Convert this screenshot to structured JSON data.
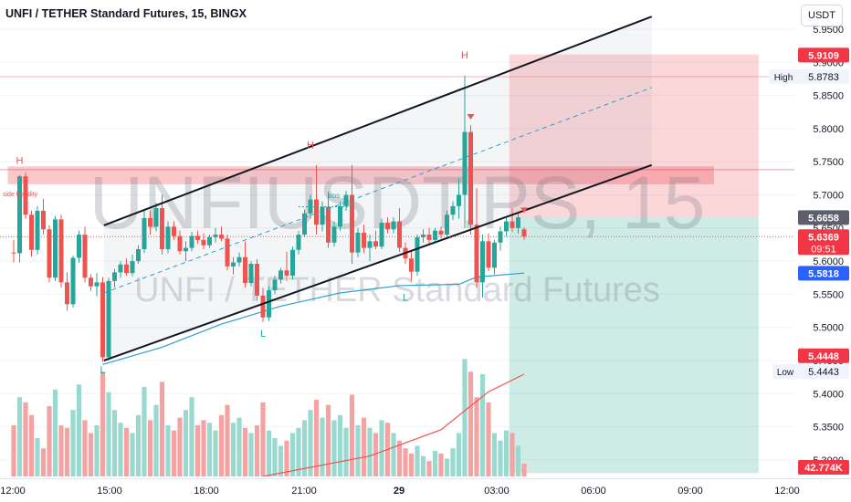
{
  "header": {
    "title": "UNFI / TETHER Standard Futures, 15, BINGX",
    "unit_button": "USDT"
  },
  "watermark": {
    "symbol": "UNFIUSDT.PS, 15",
    "description": "UNFI / TETHER Standard Futures"
  },
  "colors": {
    "up": "#26a69a",
    "down": "#ef5350",
    "up_volume": "#9ad9cf",
    "down_volume": "#f5a3a2",
    "channel": "#131722",
    "ma_line": "#2b9fd0",
    "volume_ma": "#ef5350",
    "stop_zone": "#f8c5c5",
    "target_zone": "#c6e9e4"
  },
  "chart_data": {
    "type": "candlestick",
    "y_axis": {
      "ylim": [
        5.28,
        5.965
      ],
      "ticks": [
        "5.9500",
        "5.9000",
        "5.8500",
        "5.8000",
        "5.7500",
        "5.7000",
        "5.6500",
        "5.6000",
        "5.5500",
        "5.5000",
        "5.4500",
        "5.4000",
        "5.3500",
        "5.3000"
      ]
    },
    "x_axis": {
      "ticks": [
        "12:00",
        "15:00",
        "18:00",
        "21:00",
        "29",
        "03:00",
        "06:00",
        "09:00",
        "12:00"
      ]
    },
    "candles": [
      {
        "o": 5.613,
        "h": 5.632,
        "l": 5.598,
        "c": 5.612
      },
      {
        "o": 5.612,
        "h": 5.73,
        "l": 5.598,
        "c": 5.728
      },
      {
        "o": 5.728,
        "h": 5.734,
        "l": 5.664,
        "c": 5.67
      },
      {
        "o": 5.67,
        "h": 5.676,
        "l": 5.607,
        "c": 5.617
      },
      {
        "o": 5.617,
        "h": 5.683,
        "l": 5.61,
        "c": 5.676
      },
      {
        "o": 5.676,
        "h": 5.694,
        "l": 5.64,
        "c": 5.648
      },
      {
        "o": 5.648,
        "h": 5.654,
        "l": 5.568,
        "c": 5.575
      },
      {
        "o": 5.575,
        "h": 5.668,
        "l": 5.57,
        "c": 5.663
      },
      {
        "o": 5.663,
        "h": 5.67,
        "l": 5.56,
        "c": 5.568
      },
      {
        "o": 5.568,
        "h": 5.583,
        "l": 5.525,
        "c": 5.535
      },
      {
        "o": 5.535,
        "h": 5.608,
        "l": 5.53,
        "c": 5.605
      },
      {
        "o": 5.605,
        "h": 5.646,
        "l": 5.597,
        "c": 5.64
      },
      {
        "o": 5.64,
        "h": 5.652,
        "l": 5.568,
        "c": 5.575
      },
      {
        "o": 5.575,
        "h": 5.58,
        "l": 5.555,
        "c": 5.562
      },
      {
        "o": 5.562,
        "h": 5.582,
        "l": 5.547,
        "c": 5.568
      },
      {
        "o": 5.568,
        "h": 5.576,
        "l": 5.448,
        "c": 5.455
      },
      {
        "o": 5.455,
        "h": 5.575,
        "l": 5.45,
        "c": 5.57
      },
      {
        "o": 5.57,
        "h": 5.588,
        "l": 5.56,
        "c": 5.583
      },
      {
        "o": 5.583,
        "h": 5.6,
        "l": 5.575,
        "c": 5.595
      },
      {
        "o": 5.595,
        "h": 5.604,
        "l": 5.578,
        "c": 5.582
      },
      {
        "o": 5.582,
        "h": 5.61,
        "l": 5.577,
        "c": 5.6
      },
      {
        "o": 5.6,
        "h": 5.624,
        "l": 5.596,
        "c": 5.618
      },
      {
        "o": 5.618,
        "h": 5.678,
        "l": 5.612,
        "c": 5.665
      },
      {
        "o": 5.665,
        "h": 5.676,
        "l": 5.64,
        "c": 5.652
      },
      {
        "o": 5.652,
        "h": 5.688,
        "l": 5.645,
        "c": 5.68
      },
      {
        "o": 5.68,
        "h": 5.7,
        "l": 5.61,
        "c": 5.618
      },
      {
        "o": 5.618,
        "h": 5.66,
        "l": 5.612,
        "c": 5.652
      },
      {
        "o": 5.652,
        "h": 5.66,
        "l": 5.632,
        "c": 5.638
      },
      {
        "o": 5.638,
        "h": 5.646,
        "l": 5.61,
        "c": 5.615
      },
      {
        "o": 5.615,
        "h": 5.63,
        "l": 5.6,
        "c": 5.62
      },
      {
        "o": 5.62,
        "h": 5.644,
        "l": 5.615,
        "c": 5.638
      },
      {
        "o": 5.638,
        "h": 5.646,
        "l": 5.626,
        "c": 5.632
      },
      {
        "o": 5.632,
        "h": 5.642,
        "l": 5.618,
        "c": 5.624
      },
      {
        "o": 5.624,
        "h": 5.64,
        "l": 5.62,
        "c": 5.636
      },
      {
        "o": 5.636,
        "h": 5.65,
        "l": 5.628,
        "c": 5.64
      },
      {
        "o": 5.64,
        "h": 5.652,
        "l": 5.63,
        "c": 5.634
      },
      {
        "o": 5.634,
        "h": 5.64,
        "l": 5.586,
        "c": 5.592
      },
      {
        "o": 5.592,
        "h": 5.606,
        "l": 5.58,
        "c": 5.598
      },
      {
        "o": 5.598,
        "h": 5.613,
        "l": 5.592,
        "c": 5.606
      },
      {
        "o": 5.606,
        "h": 5.63,
        "l": 5.56,
        "c": 5.567
      },
      {
        "o": 5.567,
        "h": 5.6,
        "l": 5.562,
        "c": 5.596
      },
      {
        "o": 5.596,
        "h": 5.603,
        "l": 5.54,
        "c": 5.548
      },
      {
        "o": 5.548,
        "h": 5.56,
        "l": 5.508,
        "c": 5.515
      },
      {
        "o": 5.515,
        "h": 5.562,
        "l": 5.51,
        "c": 5.556
      },
      {
        "o": 5.556,
        "h": 5.578,
        "l": 5.55,
        "c": 5.572
      },
      {
        "o": 5.572,
        "h": 5.59,
        "l": 5.566,
        "c": 5.586
      },
      {
        "o": 5.586,
        "h": 5.614,
        "l": 5.57,
        "c": 5.578
      },
      {
        "o": 5.578,
        "h": 5.622,
        "l": 5.572,
        "c": 5.617
      },
      {
        "o": 5.617,
        "h": 5.646,
        "l": 5.61,
        "c": 5.64
      },
      {
        "o": 5.64,
        "h": 5.678,
        "l": 5.636,
        "c": 5.672
      },
      {
        "o": 5.672,
        "h": 5.7,
        "l": 5.664,
        "c": 5.693
      },
      {
        "o": 5.693,
        "h": 5.745,
        "l": 5.64,
        "c": 5.655
      },
      {
        "o": 5.655,
        "h": 5.69,
        "l": 5.645,
        "c": 5.682
      },
      {
        "o": 5.682,
        "h": 5.705,
        "l": 5.62,
        "c": 5.628
      },
      {
        "o": 5.628,
        "h": 5.66,
        "l": 5.622,
        "c": 5.652
      },
      {
        "o": 5.652,
        "h": 5.69,
        "l": 5.646,
        "c": 5.683
      },
      {
        "o": 5.683,
        "h": 5.706,
        "l": 5.676,
        "c": 5.7
      },
      {
        "o": 5.7,
        "h": 5.745,
        "l": 5.596,
        "c": 5.613
      },
      {
        "o": 5.613,
        "h": 5.65,
        "l": 5.606,
        "c": 5.643
      },
      {
        "o": 5.643,
        "h": 5.655,
        "l": 5.612,
        "c": 5.62
      },
      {
        "o": 5.62,
        "h": 5.64,
        "l": 5.6,
        "c": 5.63
      },
      {
        "o": 5.63,
        "h": 5.646,
        "l": 5.618,
        "c": 5.622
      },
      {
        "o": 5.622,
        "h": 5.664,
        "l": 5.618,
        "c": 5.658
      },
      {
        "o": 5.658,
        "h": 5.666,
        "l": 5.642,
        "c": 5.648
      },
      {
        "o": 5.648,
        "h": 5.666,
        "l": 5.642,
        "c": 5.66
      },
      {
        "o": 5.66,
        "h": 5.68,
        "l": 5.614,
        "c": 5.62
      },
      {
        "o": 5.62,
        "h": 5.628,
        "l": 5.596,
        "c": 5.604
      },
      {
        "o": 5.604,
        "h": 5.616,
        "l": 5.57,
        "c": 5.584
      },
      {
        "o": 5.584,
        "h": 5.64,
        "l": 5.578,
        "c": 5.636
      },
      {
        "o": 5.636,
        "h": 5.648,
        "l": 5.628,
        "c": 5.64
      },
      {
        "o": 5.64,
        "h": 5.65,
        "l": 5.626,
        "c": 5.632
      },
      {
        "o": 5.632,
        "h": 5.65,
        "l": 5.628,
        "c": 5.646
      },
      {
        "o": 5.646,
        "h": 5.652,
        "l": 5.634,
        "c": 5.64
      },
      {
        "o": 5.64,
        "h": 5.676,
        "l": 5.634,
        "c": 5.67
      },
      {
        "o": 5.67,
        "h": 5.69,
        "l": 5.662,
        "c": 5.683
      },
      {
        "o": 5.683,
        "h": 5.725,
        "l": 5.664,
        "c": 5.7
      },
      {
        "o": 5.7,
        "h": 5.88,
        "l": 5.65,
        "c": 5.795
      },
      {
        "o": 5.795,
        "h": 5.805,
        "l": 5.64,
        "c": 5.655
      },
      {
        "o": 5.655,
        "h": 5.71,
        "l": 5.56,
        "c": 5.568
      },
      {
        "o": 5.568,
        "h": 5.64,
        "l": 5.545,
        "c": 5.63
      },
      {
        "o": 5.63,
        "h": 5.642,
        "l": 5.585,
        "c": 5.59
      },
      {
        "o": 5.59,
        "h": 5.632,
        "l": 5.58,
        "c": 5.628
      },
      {
        "o": 5.628,
        "h": 5.652,
        "l": 5.616,
        "c": 5.645
      },
      {
        "o": 5.645,
        "h": 5.665,
        "l": 5.637,
        "c": 5.66
      },
      {
        "o": 5.66,
        "h": 5.68,
        "l": 5.644,
        "c": 5.65
      },
      {
        "o": 5.65,
        "h": 5.672,
        "l": 5.642,
        "c": 5.666
      },
      {
        "o": 5.648,
        "h": 5.651,
        "l": 5.632,
        "c": 5.637
      }
    ],
    "volume": [
      40,
      62,
      58,
      48,
      30,
      22,
      55,
      68,
      40,
      38,
      52,
      72,
      44,
      34,
      40,
      82,
      66,
      52,
      42,
      38,
      34,
      48,
      70,
      44,
      56,
      74,
      40,
      36,
      46,
      52,
      62,
      40,
      44,
      42,
      36,
      48,
      56,
      42,
      46,
      38,
      34,
      40,
      58,
      36,
      30,
      24,
      28,
      34,
      38,
      44,
      52,
      60,
      46,
      56,
      44,
      48,
      38,
      64,
      40,
      46,
      38,
      34,
      44,
      42,
      34,
      28,
      22,
      18,
      24,
      16,
      12,
      20,
      18,
      14,
      22,
      34,
      92,
      82,
      62,
      80,
      58,
      34,
      28,
      36,
      34,
      24,
      10
    ],
    "moving_average": [
      [
        15,
        5.444
      ],
      [
        25,
        5.47
      ],
      [
        35,
        5.505
      ],
      [
        45,
        5.532
      ],
      [
        55,
        5.552
      ],
      [
        65,
        5.563
      ],
      [
        75,
        5.565
      ],
      [
        78,
        5.576
      ],
      [
        86,
        5.582
      ]
    ],
    "volume_moving_average": [
      [
        42,
        0
      ],
      [
        60,
        14
      ],
      [
        72,
        32
      ],
      [
        80,
        58
      ],
      [
        86,
        70
      ]
    ],
    "pivots": [
      {
        "label": "H",
        "index": 1,
        "price": 5.747
      },
      {
        "label": "L",
        "index": 15,
        "price": 5.431
      },
      {
        "label": "H",
        "index": 50,
        "price": 5.77
      },
      {
        "label": "L",
        "index": 42,
        "price": 5.486
      },
      {
        "label": "L",
        "index": 66,
        "price": 5.54
      },
      {
        "label": "H",
        "index": 76,
        "price": 5.906
      }
    ],
    "channel": {
      "upper": [
        [
          15.2,
          5.654
        ],
        [
          107.5,
          5.969
        ]
      ],
      "lower": [
        [
          15.2,
          5.45
        ],
        [
          107.5,
          5.745
        ]
      ],
      "middle": [
        [
          15.2,
          5.552
        ],
        [
          107.5,
          5.862
        ]
      ]
    },
    "zones": [
      {
        "name": "horizontal-resistance",
        "from": 5.716,
        "to": 5.743,
        "x_from": -1,
        "x_to": 118
      },
      {
        "name": "stop-zone",
        "from": 5.666,
        "to": 5.912,
        "x_from": 83.5,
        "x_to": 125.5
      },
      {
        "name": "target-zone",
        "from": 5.28,
        "to": 5.666,
        "x_from": 83.5,
        "x_to": 125.5
      }
    ],
    "labels": {
      "side_liquidity": "side liquidity",
      "bos": "BOS"
    },
    "price_labels": {
      "stop": "5.9109",
      "high_tag": "High",
      "high": "5.8783",
      "entry": "5.6658",
      "last": "5.6369",
      "countdown": "09:51",
      "ma": "5.5818",
      "target": "5.4448",
      "low_tag": "Low",
      "low": "5.4443",
      "volume": "42.774K"
    },
    "highlight_prices": {
      "stop": 5.9109,
      "high": 5.8783,
      "entry": 5.6658,
      "last": 5.6369,
      "ma": 5.5818,
      "target": 5.4448,
      "low": 5.4443
    }
  }
}
